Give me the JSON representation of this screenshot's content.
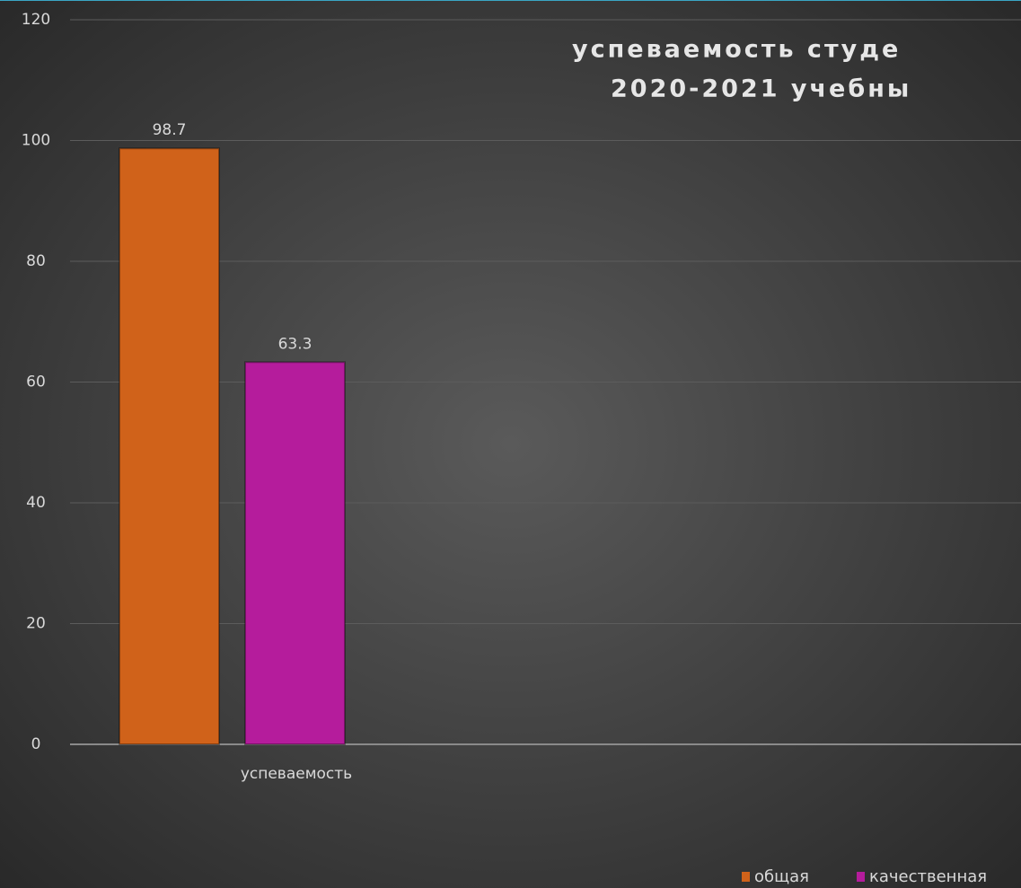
{
  "chart_data": {
    "type": "bar",
    "title": [
      "успеваемость студе",
      "2020-2021 учебны"
    ],
    "categories": [
      "успеваемость"
    ],
    "series": [
      {
        "name": "общая",
        "color": "#d0621a",
        "values": [
          98.7
        ]
      },
      {
        "name": "качественная",
        "color": "#b51c9c",
        "values": [
          63.3
        ]
      }
    ],
    "ylim": [
      0,
      120
    ],
    "yticks": [
      0,
      20,
      40,
      60,
      80,
      100,
      120
    ],
    "grid": true,
    "legend": "bottom-right"
  }
}
